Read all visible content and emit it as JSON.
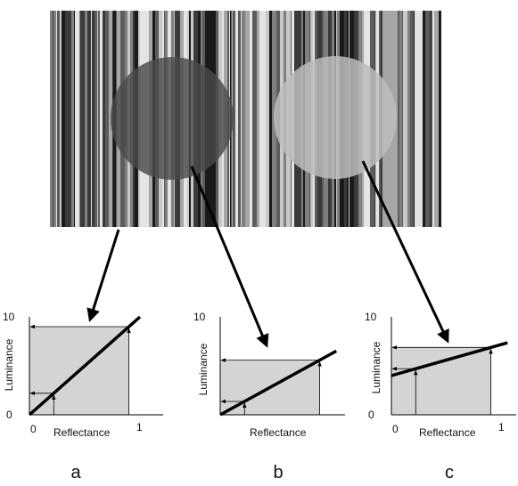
{
  "panels": [
    {
      "id": "a",
      "label": "a",
      "y_label": "Luminance",
      "x_label": "Reflectance",
      "y_tick_top": "10",
      "origin_label": "0",
      "x_tick_zero": "0",
      "x_tick_one": "1",
      "line": {
        "intercept": 0.0,
        "slope": 10.0
      },
      "reflectance_markers": [
        0.22,
        0.9
      ]
    },
    {
      "id": "b",
      "label": "b",
      "y_label": "Luminance",
      "x_label": "Reflectance",
      "y_tick_top": "10",
      "origin_label": "",
      "x_tick_zero": "",
      "x_tick_one": "",
      "line": {
        "intercept": 0.0,
        "slope": 6.2
      },
      "reflectance_markers": [
        0.22,
        0.9
      ]
    },
    {
      "id": "c",
      "label": "c",
      "y_label": "Luminance",
      "x_label": "Reflectance",
      "y_tick_top": "10",
      "origin_label": "0",
      "x_tick_zero": "0",
      "x_tick_one": "1",
      "line": {
        "intercept": 4.0,
        "slope": 3.2
      },
      "reflectance_markers": [
        0.22,
        0.9
      ]
    }
  ],
  "stimulus": {
    "stripe_colors": [
      "#1a1a1a",
      "#3a3a3a",
      "#5c5c5c",
      "#808080",
      "#a6a6a6",
      "#c8c8c8",
      "#e4e4e4"
    ],
    "dark_disk_color": "#4a4a4a",
    "light_disk_color": "#bdbdbd"
  },
  "colors": {
    "plot_fill": "#d4d4d4",
    "line": "#000000"
  }
}
